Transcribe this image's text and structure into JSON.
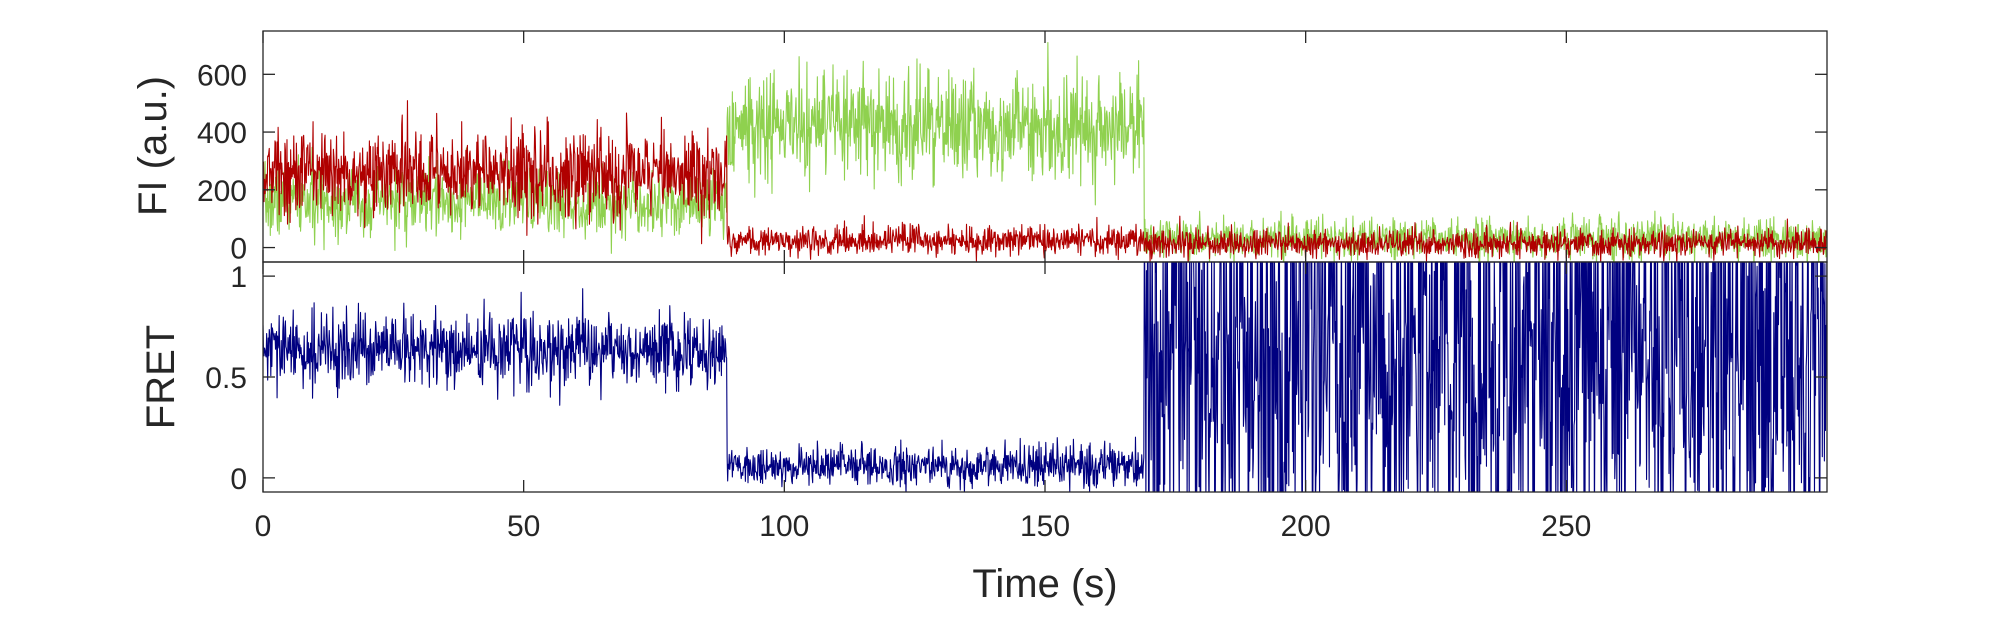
{
  "chart_data": [
    {
      "type": "line",
      "ylabel": "FI (a.u.)",
      "xlabel": "",
      "xlim": [
        0,
        300
      ],
      "ylim": [
        -50,
        750
      ],
      "xticks": [
        0,
        50,
        100,
        150,
        200,
        250
      ],
      "yticks": [
        0,
        200,
        400,
        600
      ],
      "ytick_labels": [
        "0",
        "200",
        "400",
        "600"
      ],
      "grid": false,
      "series_colors": [
        "#8fd14f",
        "#b00000"
      ],
      "series": [
        {
          "segments": [
            {
              "t0": 0,
              "t1": 89,
              "level": 160,
              "sd": 60
            },
            {
              "t0": 89,
              "t1": 169,
              "level": 420,
              "sd": 95
            },
            {
              "t0": 169,
              "t1": 300,
              "level": 30,
              "sd": 35
            }
          ],
          "n_points": 3000,
          "seed": 7
        },
        {
          "segments": [
            {
              "t0": 0,
              "t1": 89,
              "level": 260,
              "sd": 75
            },
            {
              "t0": 89,
              "t1": 169,
              "level": 25,
              "sd": 25
            },
            {
              "t0": 169,
              "t1": 300,
              "level": 15,
              "sd": 25
            }
          ],
          "n_points": 3000,
          "seed": 13
        }
      ]
    },
    {
      "type": "line",
      "ylabel": "FRET",
      "xlabel": "Time (s)",
      "xlim": [
        0,
        300
      ],
      "ylim": [
        -0.07,
        1.07
      ],
      "xticks": [
        0,
        50,
        100,
        150,
        200,
        250
      ],
      "xtick_labels": [
        "0",
        "50",
        "100",
        "150",
        "200",
        "250"
      ],
      "yticks": [
        0,
        0.5,
        1
      ],
      "ytick_labels": [
        "0",
        "0.5",
        "1"
      ],
      "grid": false,
      "series_colors": [
        "#000080"
      ],
      "series": [
        {
          "segments": [
            {
              "t0": 0,
              "t1": 89,
              "level": 0.63,
              "sd": 0.09
            },
            {
              "t0": 89,
              "t1": 169,
              "level": 0.06,
              "sd": 0.05
            },
            {
              "t0": 169,
              "t1": 300,
              "level": 0.5,
              "sd": 0.45,
              "noisy": true
            }
          ],
          "n_points": 3000,
          "seed": 29
        }
      ]
    }
  ]
}
